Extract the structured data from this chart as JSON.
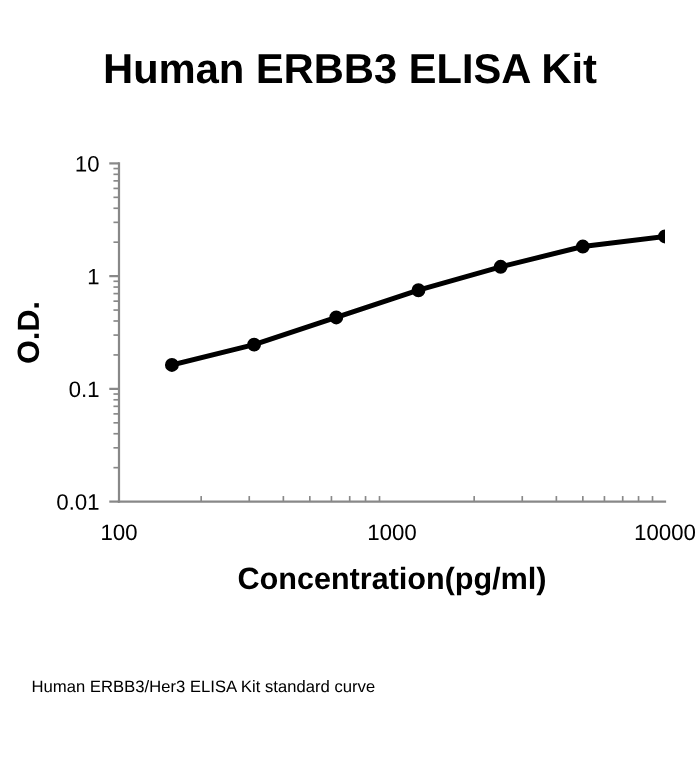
{
  "chart_data": {
    "type": "line",
    "title": "Human ERBB3 ELISA Kit",
    "xlabel": "Concentration(pg/ml)",
    "ylabel": "O.D.",
    "annotations": [
      "Human ERBB3/Her3 ELISA Kit standard curve"
    ],
    "x": [
      156.25,
      312.5,
      625,
      1250,
      2500,
      5000,
      10000
    ],
    "series": [
      {
        "color": "#000000",
        "values": [
          0.163,
          0.247,
          0.43,
          0.75,
          1.21,
          1.83,
          2.25
        ]
      }
    ],
    "log": "xy",
    "xlim": [
      100,
      10000
    ],
    "xticks": [
      100,
      1000,
      10000
    ],
    "ylim": [
      0.01,
      10
    ],
    "yticks": [
      0.01,
      0.1,
      1,
      10
    ],
    "grid": false,
    "legend": false,
    "marker": "circle",
    "line_style": "solid"
  }
}
